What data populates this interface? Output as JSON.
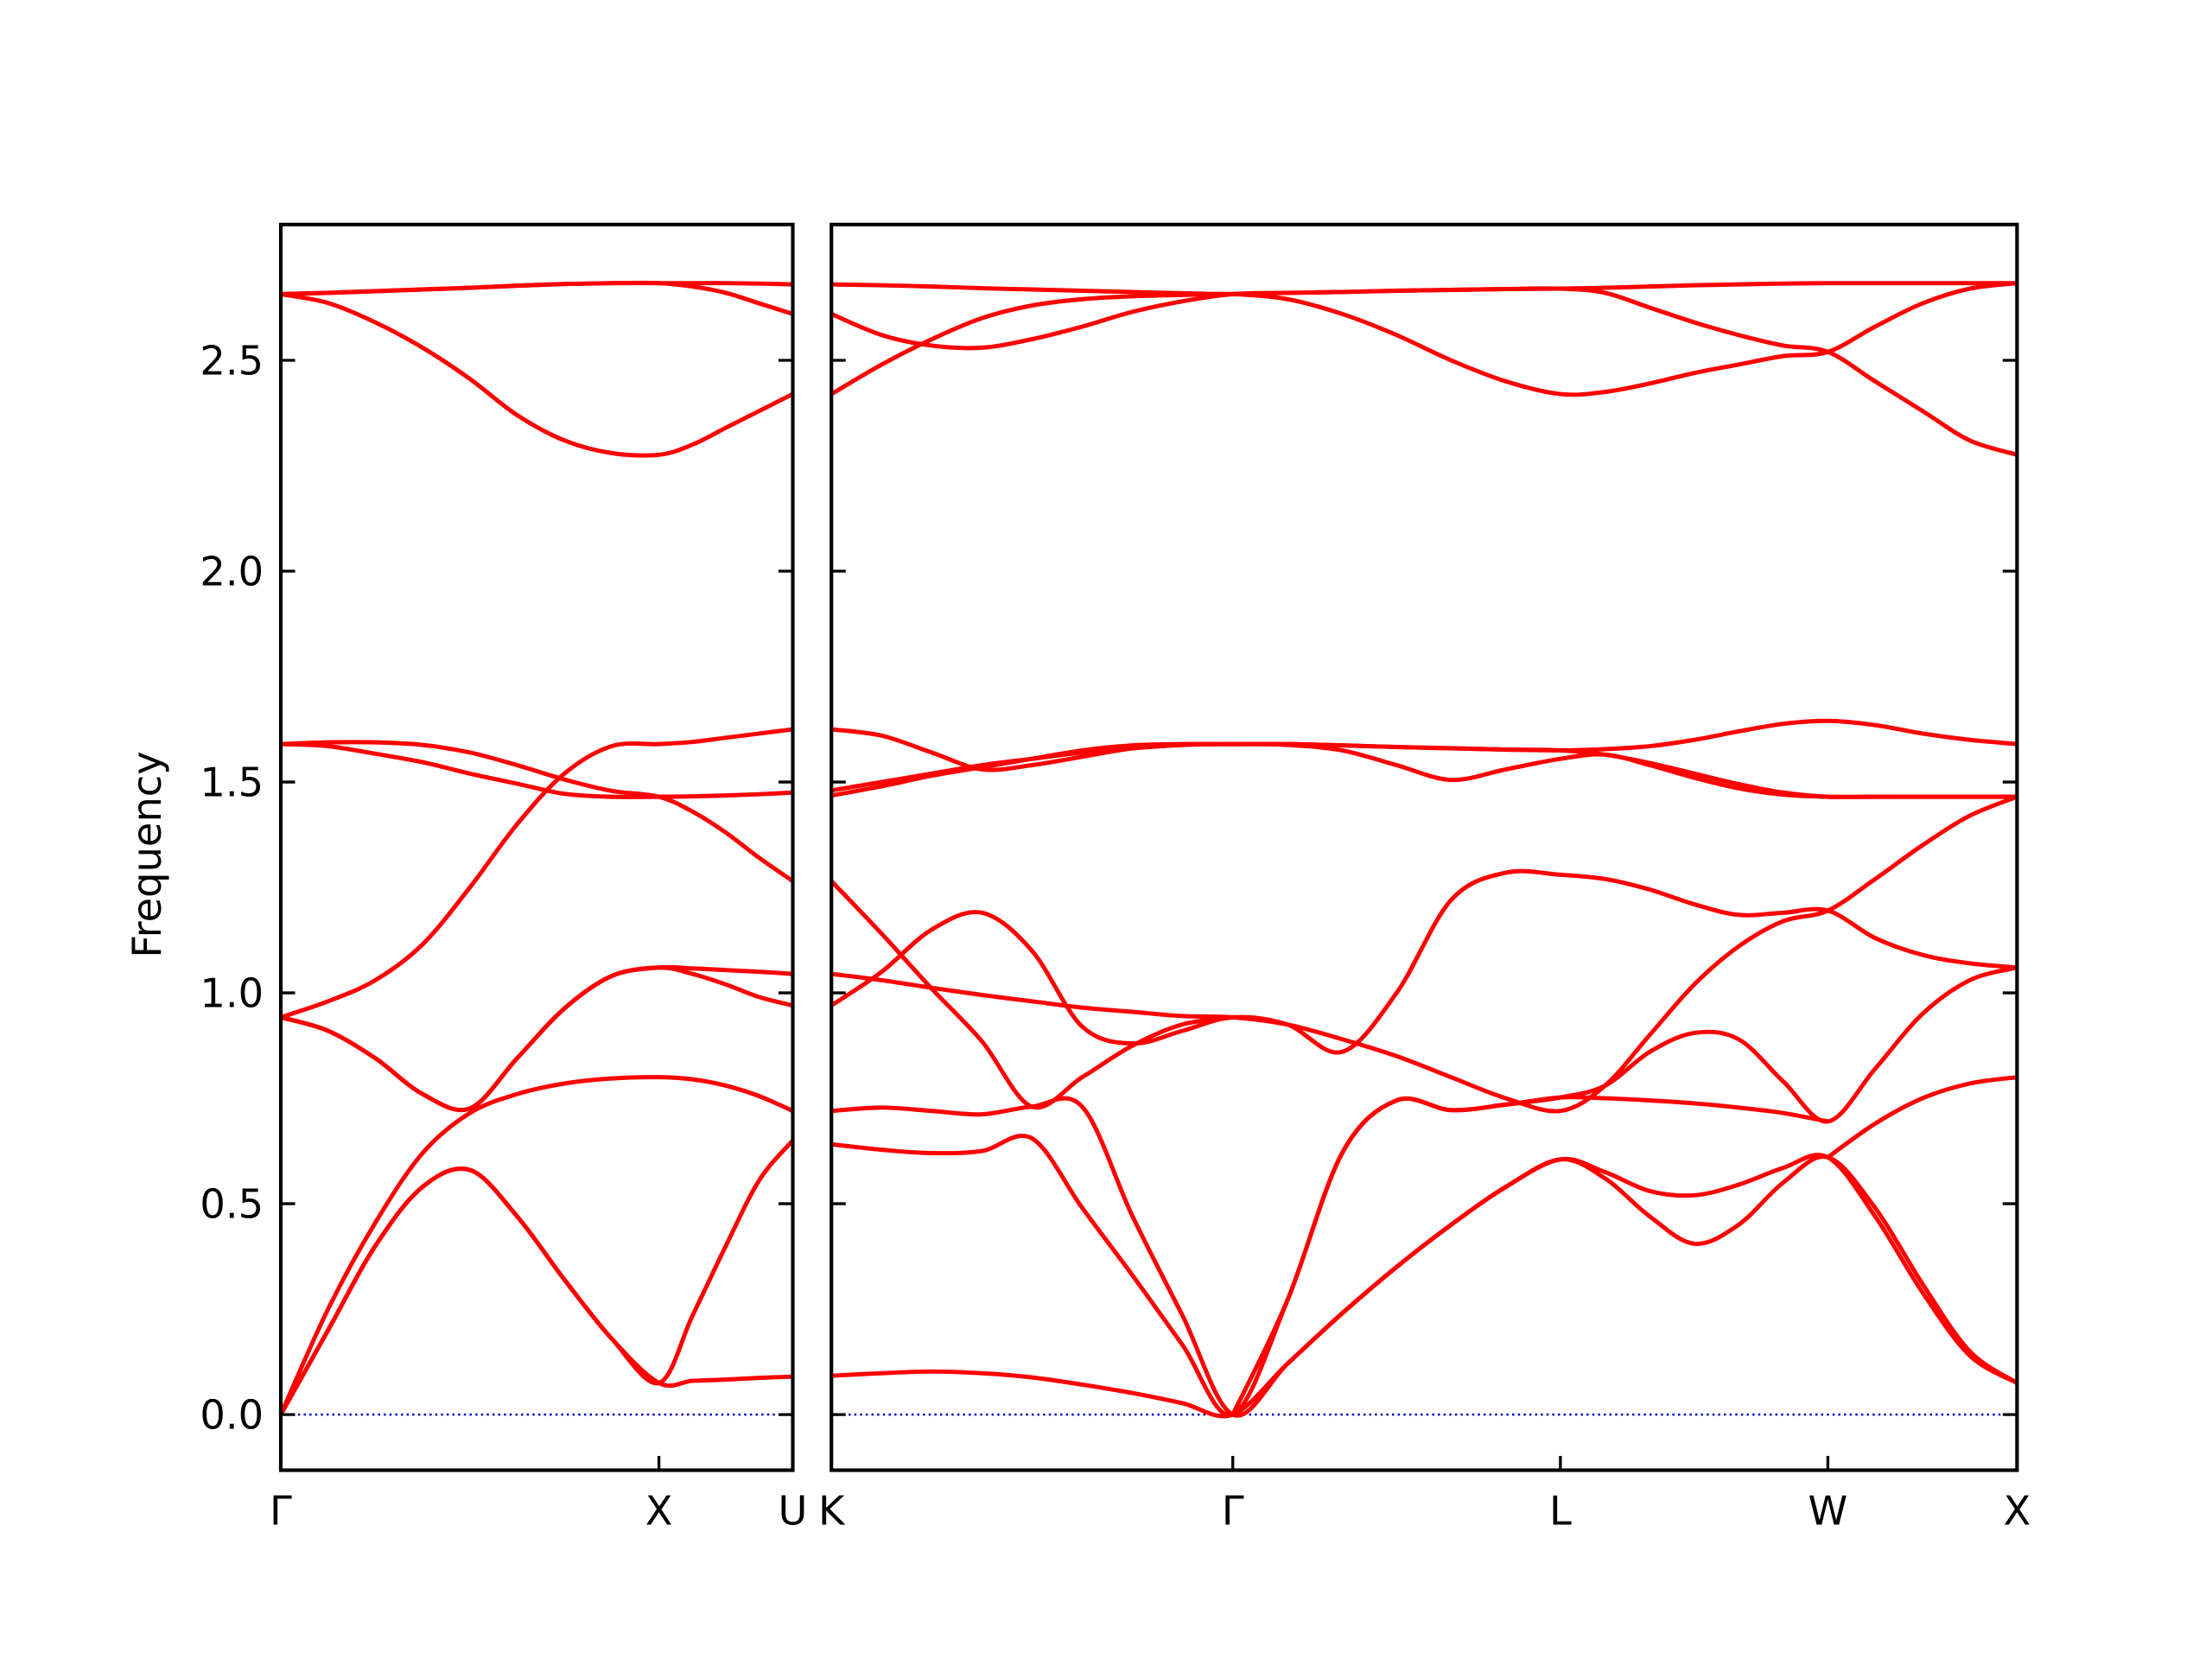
{
  "chart_data": [
    {
      "type": "line",
      "y_label": "Frequency",
      "color": "#ff0000",
      "xlim": [
        0,
        1.354
      ],
      "ylim": [
        -0.132,
        2.822
      ],
      "xticks": [
        {
          "value": 0,
          "label": "Γ"
        },
        {
          "value": 1,
          "label": "X"
        },
        {
          "value": 1.354,
          "label": "U"
        }
      ],
      "yticks": [
        {
          "value": 0,
          "label": "0.0"
        },
        0.5,
        {
          "value": 1,
          "label": "1.0"
        },
        1.5,
        {
          "value": 2,
          "label": "2.0"
        },
        2.5
      ],
      "ytick_labels": true,
      "tick_direction": "in",
      "hline": {
        "y": 0,
        "color": "#0000cc",
        "style": "dotted"
      },
      "x": [
        0,
        0.125,
        0.25,
        0.375,
        0.5,
        0.625,
        0.75,
        0.875,
        1,
        1.0885,
        1.177,
        1.2655,
        1.354
      ],
      "series": [
        {
          "values": [
            0,
            0.2,
            0.4,
            0.54,
            0.58,
            0.47,
            0.32,
            0.18,
            0.075,
            0.08,
            0.083,
            0.087,
            0.09
          ]
        },
        {
          "values": [
            0,
            0.2,
            0.4,
            0.54,
            0.58,
            0.47,
            0.32,
            0.18,
            0.075,
            0.234,
            0.4,
            0.556,
            0.65
          ]
        },
        {
          "values": [
            0,
            0.25,
            0.455,
            0.62,
            0.715,
            0.76,
            0.785,
            0.797,
            0.8,
            0.795,
            0.78,
            0.755,
            0.72
          ]
        },
        {
          "values": [
            0.942,
            0.91,
            0.845,
            0.76,
            0.726,
            0.845,
            0.963,
            1.04,
            1.06,
            1.058,
            1.054,
            1.05,
            1.045
          ]
        },
        {
          "values": [
            0.942,
            0.91,
            0.845,
            0.76,
            0.726,
            0.845,
            0.963,
            1.04,
            1.06,
            1.045,
            1.02,
            0.99,
            0.97
          ]
        },
        {
          "values": [
            0.942,
            0.98,
            1.03,
            1.115,
            1.25,
            1.4,
            1.52,
            1.585,
            1.59,
            1.595,
            1.605,
            1.615,
            1.625
          ]
        },
        {
          "values": [
            1.59,
            1.585,
            1.567,
            1.547,
            1.52,
            1.496,
            1.472,
            1.465,
            1.465,
            1.466,
            1.468,
            1.471,
            1.475
          ]
        },
        {
          "values": [
            1.59,
            1.594,
            1.594,
            1.588,
            1.57,
            1.54,
            1.506,
            1.479,
            1.465,
            1.43,
            1.38,
            1.32,
            1.265
          ]
        },
        {
          "values": [
            2.657,
            2.636,
            2.59,
            2.53,
            2.456,
            2.37,
            2.31,
            2.28,
            2.276,
            2.3,
            2.34,
            2.38,
            2.42
          ]
        },
        {
          "values": [
            2.657,
            2.66,
            2.664,
            2.668,
            2.672,
            2.677,
            2.681,
            2.683,
            2.683,
            2.683,
            2.683,
            2.682,
            2.68
          ]
        },
        {
          "values": [
            2.657,
            2.66,
            2.664,
            2.668,
            2.672,
            2.677,
            2.681,
            2.683,
            2.683,
            2.675,
            2.66,
            2.635,
            2.61
          ]
        }
      ]
    },
    {
      "type": "line",
      "color": "#ff0000",
      "xlim": [
        1.354,
        4.488
      ],
      "ylim": [
        -0.132,
        2.822
      ],
      "xticks": [
        {
          "value": 1.354,
          "label": "K"
        },
        {
          "value": 2.415,
          "label": "Γ"
        },
        {
          "value": 3.281,
          "label": "L"
        },
        {
          "value": 3.988,
          "label": "W"
        },
        {
          "value": 4.488,
          "label": "X"
        }
      ],
      "yticks": [
        0,
        0.5,
        1,
        1.5,
        2,
        2.5
      ],
      "ytick_labels": false,
      "tick_direction": "in",
      "hline": {
        "y": 0,
        "color": "#0000cc",
        "style": "dotted"
      },
      "x": [
        1.354,
        1.487,
        1.619,
        1.752,
        1.884,
        2.017,
        2.15,
        2.282,
        2.415,
        2.559,
        2.704,
        2.848,
        2.992,
        3.137,
        3.281,
        3.399,
        3.517,
        3.635,
        3.752,
        3.87,
        3.988,
        4.113,
        4.238,
        4.363,
        4.488
      ],
      "series": [
        {
          "values": [
            0.092,
            0.098,
            0.102,
            0.098,
            0.088,
            0.071,
            0.051,
            0.027,
            0,
            0.12,
            0.24,
            0.35,
            0.45,
            0.54,
            0.605,
            0.56,
            0.47,
            0.405,
            0.45,
            0.55,
            0.61,
            0.49,
            0.31,
            0.15,
            0.075
          ]
        },
        {
          "values": [
            0.641,
            0.628,
            0.62,
            0.625,
            0.655,
            0.49,
            0.33,
            0.165,
            0,
            0.27,
            0.62,
            0.745,
            0.722,
            0.735,
            0.752,
            0.78,
            0.86,
            0.905,
            0.89,
            0.79,
            0.695,
            0.82,
            0.95,
            1.03,
            1.06
          ]
        },
        {
          "values": [
            0.72,
            0.728,
            0.72,
            0.712,
            0.73,
            0.73,
            0.47,
            0.235,
            0,
            0.12,
            0.24,
            0.35,
            0.45,
            0.54,
            0.605,
            0.575,
            0.53,
            0.52,
            0.545,
            0.585,
            0.61,
            0.47,
            0.29,
            0.14,
            0.075
          ]
        },
        {
          "values": [
            null,
            null,
            null,
            null,
            null,
            null,
            null,
            null,
            0,
            0.27,
            0.62,
            0.745,
            0.722,
            0.735,
            0.752,
            0.75,
            0.745,
            0.738,
            0.728,
            0.715,
            0.695,
            null,
            null,
            null,
            null
          ]
        },
        {
          "values": [
            0.97,
            1.05,
            1.15,
            1.19,
            1.1,
            0.92,
            0.88,
            0.91,
            0.942,
            0.925,
            0.86,
            1.0,
            1.22,
            1.285,
            1.28,
            1.27,
            1.245,
            1.21,
            1.185,
            1.19,
            1.195,
            1.13,
            1.09,
            1.07,
            1.06
          ]
        },
        {
          "values": [
            1.045,
            1.03,
            1.012,
            0.995,
            0.98,
            0.965,
            0.955,
            0.945,
            0.942,
            0.925,
            0.89,
            0.85,
            0.8,
            0.75,
            0.72,
            0.78,
            0.9,
            1.02,
            1.11,
            1.17,
            1.195,
            1.27,
            1.35,
            1.42,
            1.465
          ]
        },
        {
          "values": [
            1.265,
            1.14,
            1.01,
            0.885,
            0.73,
            0.8,
            0.875,
            0.925,
            0.942,
            null,
            null,
            null,
            null,
            null,
            null,
            null,
            null,
            null,
            null,
            null,
            null,
            null,
            null,
            null,
            null
          ]
        },
        {
          "values": [
            1.48,
            1.5,
            1.52,
            1.54,
            1.555,
            1.57,
            1.58,
            1.588,
            1.59,
            1.59,
            1.587,
            1.583,
            1.58,
            1.577,
            1.575,
            1.565,
            1.545,
            1.52,
            1.495,
            1.475,
            1.465,
            1.465,
            1.465,
            1.465,
            1.465
          ]
        },
        {
          "values": [
            1.468,
            1.49,
            1.515,
            1.535,
            1.555,
            1.575,
            1.587,
            1.59,
            1.59,
            1.588,
            1.575,
            1.54,
            1.505,
            1.53,
            1.555,
            1.565,
            1.54,
            1.51,
            1.485,
            1.47,
            1.465,
            1.465,
            1.465,
            1.465,
            1.465
          ]
        },
        {
          "values": [
            1.625,
            1.61,
            1.57,
            1.53,
            1.54,
            1.56,
            1.58,
            1.588,
            1.59,
            1.59,
            1.587,
            1.583,
            1.58,
            1.577,
            1.575,
            1.578,
            1.585,
            1.6,
            1.62,
            1.638,
            1.645,
            1.635,
            1.615,
            1.6,
            1.59
          ]
        },
        {
          "values": [
            2.42,
            2.49,
            2.55,
            2.6,
            2.63,
            2.645,
            2.652,
            2.655,
            2.657,
            2.645,
            2.61,
            2.56,
            2.5,
            2.45,
            2.42,
            2.425,
            2.445,
            2.47,
            2.49,
            2.51,
            2.52,
            2.58,
            2.635,
            2.67,
            2.683
          ]
        },
        {
          "values": [
            2.61,
            2.56,
            2.535,
            2.53,
            2.55,
            2.58,
            2.615,
            2.64,
            2.657,
            2.66,
            2.662,
            2.665,
            2.667,
            2.669,
            2.67,
            2.66,
            2.625,
            2.59,
            2.56,
            2.535,
            2.52,
            2.45,
            2.38,
            2.31,
            2.276
          ]
        },
        {
          "values": [
            2.68,
            2.678,
            2.675,
            2.671,
            2.668,
            2.665,
            2.662,
            2.659,
            2.657,
            2.66,
            2.662,
            2.665,
            2.667,
            2.669,
            2.67,
            2.672,
            2.675,
            2.678,
            2.68,
            2.682,
            2.683,
            2.683,
            2.683,
            2.683,
            2.683
          ]
        },
        {
          "values": [
            null,
            null,
            null,
            null,
            null,
            null,
            null,
            null,
            null,
            null,
            null,
            null,
            null,
            null,
            null,
            null,
            null,
            null,
            null,
            null,
            0.61,
            0.69,
            0.75,
            0.785,
            0.8
          ]
        }
      ]
    }
  ]
}
